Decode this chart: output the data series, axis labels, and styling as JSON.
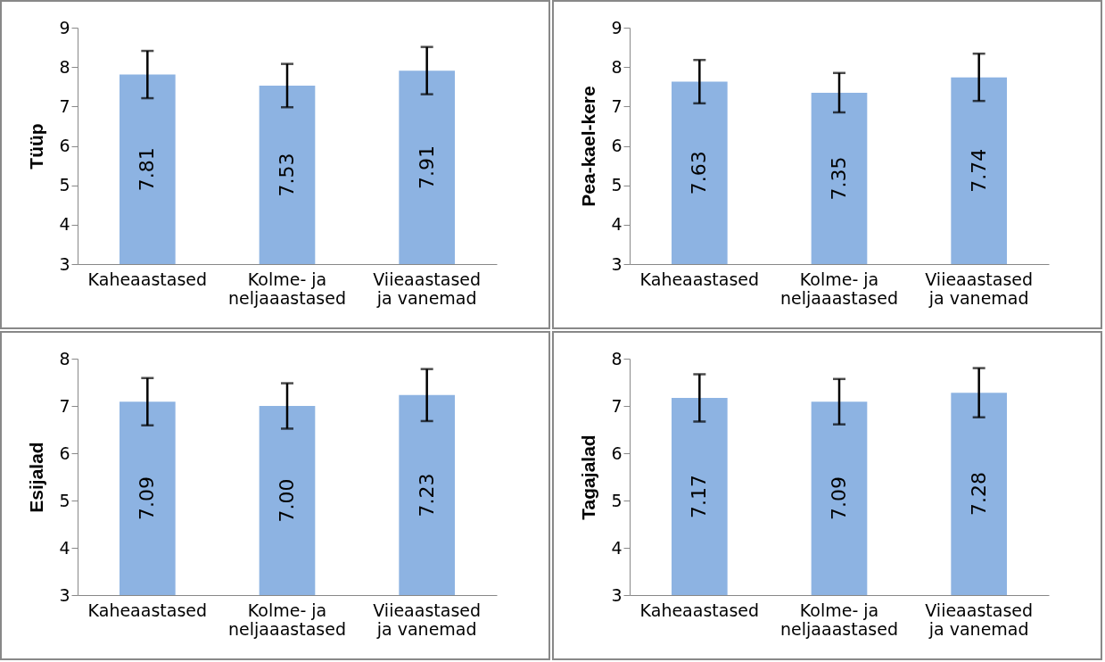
{
  "chart_data": [
    {
      "type": "bar",
      "ylabel": "Tüüp",
      "categories": [
        "Kaheaastased",
        "Kolme- ja neljaaastased",
        "Viieaastased ja vanemad"
      ],
      "values": [
        7.81,
        7.53,
        7.91
      ],
      "value_labels": [
        "7.81",
        "7.53",
        "7.91"
      ],
      "errors": [
        0.6,
        0.55,
        0.6
      ],
      "color": "#8db3e2",
      "ylim": [
        3,
        9
      ],
      "yticks": [
        3,
        4,
        5,
        6,
        7,
        8,
        9
      ],
      "grid": false
    },
    {
      "type": "bar",
      "ylabel": "Pea-kael-kere",
      "categories": [
        "Kaheaastased",
        "Kolme- ja neljaaastased",
        "Viieaastased ja vanemad"
      ],
      "values": [
        7.63,
        7.35,
        7.74
      ],
      "value_labels": [
        "7.63",
        "7.35",
        "7.74"
      ],
      "errors": [
        0.55,
        0.5,
        0.6
      ],
      "color": "#8db3e2",
      "ylim": [
        3,
        9
      ],
      "yticks": [
        3,
        4,
        5,
        6,
        7,
        8,
        9
      ],
      "grid": false
    },
    {
      "type": "bar",
      "ylabel": "Esijalad",
      "categories": [
        "Kaheaastased",
        "Kolme- ja neljaaastased",
        "Viieaastased ja vanemad"
      ],
      "values": [
        7.09,
        7.0,
        7.23
      ],
      "value_labels": [
        "7.09",
        "7.00",
        "7.23"
      ],
      "errors": [
        0.5,
        0.48,
        0.55
      ],
      "color": "#8db3e2",
      "ylim": [
        3,
        8
      ],
      "yticks": [
        3,
        4,
        5,
        6,
        7,
        8
      ],
      "grid": false
    },
    {
      "type": "bar",
      "ylabel": "Tagajalad",
      "categories": [
        "Kaheaastased",
        "Kolme- ja neljaaastased",
        "Viieaastased ja vanemad"
      ],
      "values": [
        7.17,
        7.09,
        7.28
      ],
      "value_labels": [
        "7.17",
        "7.09",
        "7.28"
      ],
      "errors": [
        0.5,
        0.48,
        0.52
      ],
      "color": "#8db3e2",
      "ylim": [
        3,
        8
      ],
      "yticks": [
        3,
        4,
        5,
        6,
        7,
        8
      ],
      "grid": false
    }
  ]
}
